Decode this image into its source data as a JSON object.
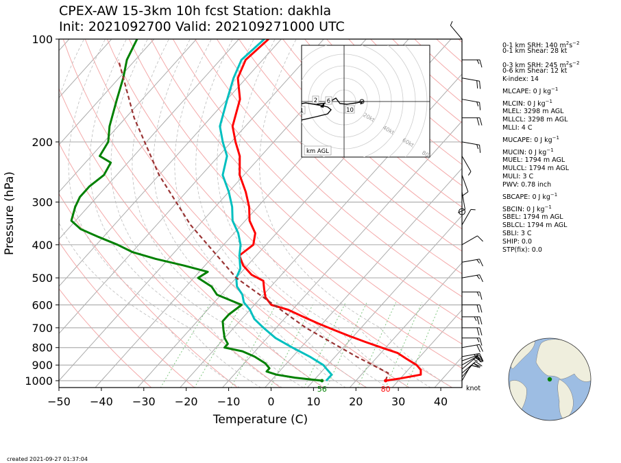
{
  "header": {
    "title_line1": "CPEX-AW 15-3km  10h fcst  Station: dakhla",
    "title_line2": "Init: 2021092700  Valid: 202109271000 UTC"
  },
  "chart_data": {
    "type": "line",
    "subtype": "skew-T log-P sounding",
    "xlabel": "Temperature (C)",
    "ylabel": "Pressure (hPa)",
    "xlim": [
      -50,
      45
    ],
    "ylim": [
      1050,
      100
    ],
    "yscale": "log",
    "x_ticks": [
      "−50",
      "−40",
      "−30",
      "−20",
      "−10",
      "0",
      "10",
      "20",
      "30",
      "40"
    ],
    "y_ticks": [
      "100",
      "200",
      "300",
      "400",
      "500",
      "600",
      "700",
      "800",
      "900",
      "1000"
    ],
    "surface_labels": {
      "dewpoint": "56",
      "temperature": "80"
    },
    "wind_unit_label": "knot",
    "series": [
      {
        "color": "#ff0000",
        "points": [
          [
            27,
            1000
          ],
          [
            30,
            985
          ],
          [
            34,
            960
          ],
          [
            33,
            930
          ],
          [
            31,
            900
          ],
          [
            27,
            860
          ],
          [
            24,
            830
          ],
          [
            19,
            800
          ],
          [
            14,
            770
          ],
          [
            9,
            740
          ],
          [
            4,
            710
          ],
          [
            -1,
            680
          ],
          [
            -6,
            650
          ],
          [
            -11,
            620
          ],
          [
            -16,
            600
          ],
          [
            -19,
            570
          ],
          [
            -21,
            540
          ],
          [
            -23,
            510
          ],
          [
            -27,
            490
          ],
          [
            -31,
            460
          ],
          [
            -34,
            430
          ],
          [
            -33,
            400
          ],
          [
            -35,
            370
          ],
          [
            -39,
            340
          ],
          [
            -42,
            310
          ],
          [
            -46,
            280
          ],
          [
            -51,
            250
          ],
          [
            -55,
            220
          ],
          [
            -59,
            200
          ],
          [
            -63,
            180
          ],
          [
            -67,
            150
          ],
          [
            -72,
            130
          ],
          [
            -74,
            115
          ],
          [
            -73,
            100
          ]
        ]
      },
      {
        "color": "#00bfbf",
        "points": [
          [
            13,
            1000
          ],
          [
            13,
            960
          ],
          [
            11,
            930
          ],
          [
            9,
            900
          ],
          [
            4,
            850
          ],
          [
            -2,
            800
          ],
          [
            -8,
            750
          ],
          [
            -13,
            700
          ],
          [
            -17,
            660
          ],
          [
            -20,
            620
          ],
          [
            -23,
            590
          ],
          [
            -25,
            560
          ],
          [
            -28,
            530
          ],
          [
            -30,
            500
          ],
          [
            -31,
            470
          ],
          [
            -34,
            430
          ],
          [
            -36,
            400
          ],
          [
            -39,
            370
          ],
          [
            -43,
            340
          ],
          [
            -46,
            310
          ],
          [
            -50,
            280
          ],
          [
            -55,
            250
          ],
          [
            -58,
            220
          ],
          [
            -62,
            200
          ],
          [
            -66,
            180
          ],
          [
            -70,
            150
          ],
          [
            -73,
            130
          ],
          [
            -75,
            115
          ],
          [
            -74,
            100
          ]
        ]
      },
      {
        "color": "#008000",
        "points": [
          [
            12,
            1000
          ],
          [
            5,
            980
          ],
          [
            0,
            960
          ],
          [
            -3,
            940
          ],
          [
            -3,
            920
          ],
          [
            -5,
            890
          ],
          [
            -9,
            850
          ],
          [
            -13,
            820
          ],
          [
            -18,
            800
          ],
          [
            -18,
            780
          ],
          [
            -20,
            750
          ],
          [
            -22,
            710
          ],
          [
            -24,
            670
          ],
          [
            -24,
            640
          ],
          [
            -23,
            600
          ],
          [
            -31,
            560
          ],
          [
            -34,
            530
          ],
          [
            -39,
            500
          ],
          [
            -38,
            480
          ],
          [
            -45,
            460
          ],
          [
            -53,
            440
          ],
          [
            -60,
            420
          ],
          [
            -65,
            400
          ],
          [
            -71,
            380
          ],
          [
            -77,
            360
          ],
          [
            -81,
            340
          ],
          [
            -83,
            310
          ],
          [
            -84,
            290
          ],
          [
            -84,
            270
          ],
          [
            -83,
            250
          ],
          [
            -84,
            230
          ],
          [
            -88,
            220
          ],
          [
            -89,
            200
          ],
          [
            -92,
            180
          ],
          [
            -96,
            150
          ],
          [
            -99,
            130
          ],
          [
            -102,
            115
          ],
          [
            -104,
            100
          ]
        ]
      },
      {
        "color": "#993333",
        "dashed": true,
        "points": [
          [
            27,
            1000
          ],
          [
            26,
            950
          ],
          [
            15,
            850
          ],
          [
            -3,
            700
          ],
          [
            -30,
            500
          ],
          [
            -52,
            350
          ],
          [
            -70,
            250
          ],
          [
            -88,
            170
          ],
          [
            -104,
            115
          ]
        ]
      }
    ],
    "wind_barbs_knots": [
      {
        "p": 1000,
        "spd": 10,
        "dir": 30
      },
      {
        "p": 975,
        "spd": 15,
        "dir": 40
      },
      {
        "p": 950,
        "spd": 20,
        "dir": 50
      },
      {
        "p": 925,
        "spd": 15,
        "dir": 50
      },
      {
        "p": 900,
        "spd": 15,
        "dir": 60
      },
      {
        "p": 875,
        "spd": 20,
        "dir": 70
      },
      {
        "p": 850,
        "spd": 25,
        "dir": 80
      },
      {
        "p": 800,
        "spd": 20,
        "dir": 80
      },
      {
        "p": 750,
        "spd": 15,
        "dir": 90
      },
      {
        "p": 700,
        "spd": 20,
        "dir": 90
      },
      {
        "p": 650,
        "spd": 25,
        "dir": 90
      },
      {
        "p": 600,
        "spd": 20,
        "dir": 90
      },
      {
        "p": 550,
        "spd": 15,
        "dir": 90
      },
      {
        "p": 500,
        "spd": 15,
        "dir": 80
      },
      {
        "p": 450,
        "spd": 15,
        "dir": 80
      },
      {
        "p": 400,
        "spd": 10,
        "dir": 60
      },
      {
        "p": 350,
        "spd": 5,
        "dir": 30
      },
      {
        "p": 320,
        "spd": 0,
        "dir": 0
      },
      {
        "p": 280,
        "spd": 10,
        "dir": 170
      },
      {
        "p": 250,
        "spd": 10,
        "dir": 160
      },
      {
        "p": 220,
        "spd": 5,
        "dir": 150
      },
      {
        "p": 200,
        "spd": 15,
        "dir": 100
      },
      {
        "p": 170,
        "spd": 20,
        "dir": 90
      },
      {
        "p": 150,
        "spd": 15,
        "dir": 100
      },
      {
        "p": 130,
        "spd": 20,
        "dir": 100
      },
      {
        "p": 115,
        "spd": 15,
        "dir": 90
      },
      {
        "p": 100,
        "spd": 5,
        "dir": 320
      }
    ],
    "hodograph": {
      "ring_labels": [
        "20kt",
        "40kt",
        "60kt",
        "80kt"
      ],
      "height_labels": [
        "1",
        "2",
        "6",
        "10"
      ],
      "footer": "km AGL"
    },
    "indices": [
      {
        "label": "0-1 km SRH: 140 m",
        "sup": "2",
        "mid": "s",
        "sup2": "−2",
        "rest": ""
      },
      {
        "label": "0-1 km Shear: 28 kt"
      },
      {
        "label": "0-3 km SRH: 245 m",
        "sup": "2",
        "mid": "s",
        "sup2": "−2",
        "rest": ""
      },
      {
        "label": "0-6 km Shear: 12 kt"
      },
      {
        "label": "K-index: 14"
      },
      {
        "label": "MLCAPE: 0 J kg",
        "sup": "−1"
      },
      {
        "label": "MLCIN: 0 J kg",
        "sup": "−1"
      },
      {
        "label": "MLEL: 3298 m AGL"
      },
      {
        "label": "MLLCL: 3298 m AGL"
      },
      {
        "label": "MLLI: 4 C"
      },
      {
        "label": "MUCAPE: 0 J kg",
        "sup": "−1"
      },
      {
        "label": "MUCIN: 0 J kg",
        "sup": "−1"
      },
      {
        "label": "MUEL: 1794 m AGL"
      },
      {
        "label": "MULCL: 1794 m AGL"
      },
      {
        "label": "MULI: 3 C"
      },
      {
        "label": "PWV: 0.78 inch"
      },
      {
        "label": "SBCAPE: 0 J kg",
        "sup": "−1"
      },
      {
        "label": "SBCIN: 0 J kg",
        "sup": "−1"
      },
      {
        "label": "SBEL: 1794 m AGL"
      },
      {
        "label": "SBLCL: 1794 m AGL"
      },
      {
        "label": "SBLI: 3 C"
      },
      {
        "label": "SHIP: 0.0"
      },
      {
        "label": "STP(fix): 0.0"
      }
    ],
    "colors": {
      "temperature": "#ff0000",
      "dewpoint": "#008000",
      "wetbulb": "#00bfbf",
      "parcel": "#993333",
      "dry_adiabat": "#f4a9a9",
      "mixing_ratio": "#7fc77f",
      "isotherm": "#aaaaaa",
      "globe_ocean": "#9dbde3",
      "globe_land": "#efeedd",
      "station_marker": "#008000"
    }
  },
  "footer": {
    "created": "created 2021-09-27 01:37:04"
  }
}
